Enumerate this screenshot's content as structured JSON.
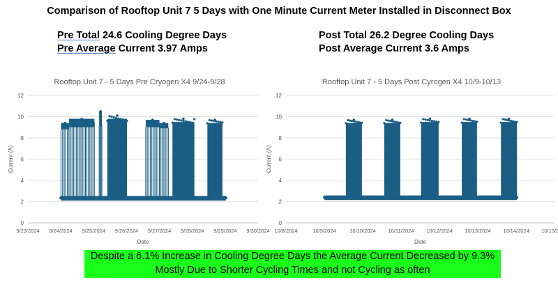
{
  "page": {
    "title": "Comparison of Rooftop Unit 7 5 Days with One Minute Current Meter Installed in Disconnect Box",
    "pre_stats": {
      "line1_bold": "Pre Total",
      "line1_rest": " 24.6 Cooling Degree Days",
      "line2_bold": "Pre Average",
      "line2_rest": " Current 3.97 Amps"
    },
    "post_stats": {
      "line1": "Post Total 26.2 Degree Cooling Days",
      "line2": "Post Average Current 3.6 Amps"
    },
    "conclusion": {
      "line1": "Despite a 6.1% Increase in Cooling Degree Days the Average Current Decreased by 9.3%",
      "line2": "Mostly Due to Shorter Cycling Times and not Cycling as often"
    }
  },
  "chart_data": [
    {
      "type": "scatter",
      "title": "Rooftop Unit 7 - 5 Days Pre Cryogen X4 9/24-9/28",
      "xlabel": "Date",
      "ylabel": "Current (A)",
      "ylim": [
        0,
        12
      ],
      "yticks": [
        "0",
        "2",
        "4",
        "6",
        "8",
        "10",
        "12"
      ],
      "xlim": [
        "2024-09-23",
        "2024-09-30"
      ],
      "xticks": [
        "9/23/2024",
        "9/24/2024",
        "9/25/2024",
        "9/26/2024",
        "9/27/2024",
        "9/28/2024",
        "9/29/2024",
        "9/30/2024"
      ],
      "grid": true,
      "color": "#1a5e85",
      "data_range": [
        "2024-09-24",
        "2024-09-29"
      ],
      "baseline_current": 2.35,
      "on_periods": [
        {
          "start": "2024-09-24 00:10",
          "end": "2024-09-24 06:00",
          "current_min": 9.0,
          "current_max": 9.4,
          "cycling": true
        },
        {
          "start": "2024-09-24 06:00",
          "end": "2024-09-25 00:30",
          "current_min": 9.2,
          "current_max": 9.8,
          "cycling": true
        },
        {
          "start": "2024-09-25 04:00",
          "end": "2024-09-25 06:00",
          "current_min": 9.3,
          "current_max": 10.5,
          "cycling": true
        },
        {
          "start": "2024-09-25 10:00",
          "end": "2024-09-26 00:20",
          "current_min": 9.0,
          "current_max": 10.1,
          "cycling": false
        },
        {
          "start": "2024-09-26 14:00",
          "end": "2024-09-27 00:00",
          "current_min": 9.2,
          "current_max": 9.7,
          "cycling": true
        },
        {
          "start": "2024-09-27 00:00",
          "end": "2024-09-27 06:30",
          "current_min": 9.1,
          "current_max": 9.4,
          "cycling": true
        },
        {
          "start": "2024-09-27 09:30",
          "end": "2024-09-28 01:30",
          "current_min": 9.0,
          "current_max": 9.8,
          "cycling": false
        },
        {
          "start": "2024-09-28 11:00",
          "end": "2024-09-28 22:00",
          "current_min": 9.0,
          "current_max": 9.7,
          "cycling": false
        }
      ]
    },
    {
      "type": "scatter",
      "title": "Rooftop Unit 7 - 5 Days Post Cyrogen X4 10/9-10/13",
      "xlabel": "Date",
      "ylabel": "Current (A)",
      "ylim": [
        0,
        12
      ],
      "yticks": [
        "0",
        "2",
        "4",
        "6",
        "8",
        "10",
        "12"
      ],
      "xlim": [
        "2024-10-08",
        "2024-10-15"
      ],
      "xticks": [
        "10/8/2024",
        "10/9/2024",
        "10/10/2024",
        "10/11/2024",
        "10/12/2024",
        "10/13/2024",
        "10/14/2024",
        "10/15/2024"
      ],
      "grid": true,
      "color": "#1a5e85",
      "data_range": [
        "2024-10-09",
        "2024-10-14"
      ],
      "baseline_current": 2.4,
      "on_periods": [
        {
          "start": "2024-10-09 13:30",
          "end": "2024-10-09 23:30",
          "current_min": 9.0,
          "current_max": 9.7,
          "cycling": false
        },
        {
          "start": "2024-10-10 13:30",
          "end": "2024-10-10 23:30",
          "current_min": 9.0,
          "current_max": 9.7,
          "cycling": false
        },
        {
          "start": "2024-10-11 12:30",
          "end": "2024-10-11 23:30",
          "current_min": 9.0,
          "current_max": 9.8,
          "cycling": false
        },
        {
          "start": "2024-10-12 14:00",
          "end": "2024-10-12 23:30",
          "current_min": 9.0,
          "current_max": 9.8,
          "cycling": false
        },
        {
          "start": "2024-10-13 14:30",
          "end": "2024-10-14 00:30",
          "current_min": 9.0,
          "current_max": 9.8,
          "cycling": false
        }
      ]
    }
  ]
}
